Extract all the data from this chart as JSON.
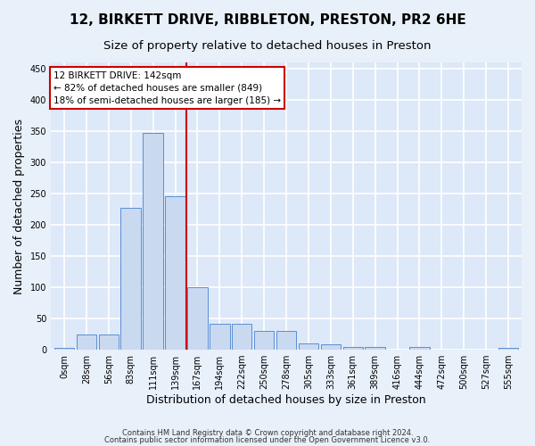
{
  "title": "12, BIRKETT DRIVE, RIBBLETON, PRESTON, PR2 6HE",
  "subtitle": "Size of property relative to detached houses in Preston",
  "xlabel": "Distribution of detached houses by size in Preston",
  "ylabel": "Number of detached properties",
  "bar_values": [
    3,
    25,
    25,
    227,
    347,
    246,
    100,
    41,
    41,
    30,
    30,
    10,
    9,
    4,
    5,
    0,
    4,
    0,
    0,
    0,
    3
  ],
  "bar_labels": [
    "0sqm",
    "28sqm",
    "56sqm",
    "83sqm",
    "111sqm",
    "139sqm",
    "167sqm",
    "194sqm",
    "222sqm",
    "250sqm",
    "278sqm",
    "305sqm",
    "333sqm",
    "361sqm",
    "389sqm",
    "416sqm",
    "444sqm",
    "472sqm",
    "500sqm",
    "527sqm",
    "555sqm"
  ],
  "bar_color": "#c9d9f0",
  "bar_edgecolor": "#5b8fd4",
  "background_color": "#dde8f8",
  "fig_background_color": "#e8f0fa",
  "grid_color": "#ffffff",
  "vline_x": 5.5,
  "vline_color": "#cc0000",
  "annotation_text": "12 BIRKETT DRIVE: 142sqm\n← 82% of detached houses are smaller (849)\n18% of semi-detached houses are larger (185) →",
  "annotation_box_color": "#cc0000",
  "ylim": [
    0,
    460
  ],
  "yticks": [
    0,
    50,
    100,
    150,
    200,
    250,
    300,
    350,
    400,
    450
  ],
  "footer_line1": "Contains HM Land Registry data © Crown copyright and database right 2024.",
  "footer_line2": "Contains public sector information licensed under the Open Government Licence v3.0.",
  "title_fontsize": 11,
  "subtitle_fontsize": 9.5,
  "tick_fontsize": 7,
  "ylabel_fontsize": 9,
  "xlabel_fontsize": 9,
  "annotation_fontsize": 7.5,
  "footer_fontsize": 6
}
